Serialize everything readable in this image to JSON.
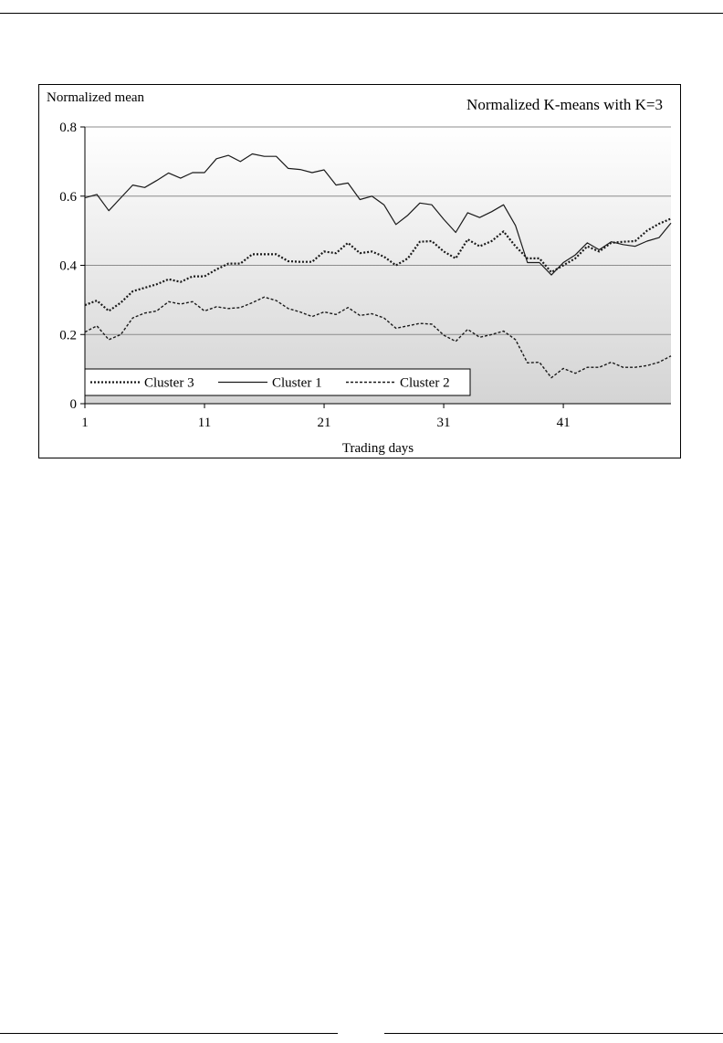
{
  "chart_data": {
    "type": "line",
    "title": "Normalized K-means with K=3",
    "ylabel": "Normalized mean",
    "xlabel": "Trading days",
    "xlim": [
      1,
      50
    ],
    "ylim": [
      0,
      0.8
    ],
    "yticks": [
      0,
      0.2,
      0.4,
      0.6,
      0.8
    ],
    "ytick_labels": [
      "0",
      "0.2",
      "0.4",
      "0.6",
      "0.8"
    ],
    "xticks": [
      1,
      11,
      21,
      31,
      41
    ],
    "xtick_labels": [
      "1",
      "11",
      "21",
      "31",
      "41"
    ],
    "grid": "horizontal",
    "legend": "bottom-left",
    "legend_order": [
      "Cluster 3",
      "Cluster 1",
      "Cluster 2"
    ],
    "x": [
      1,
      2,
      3,
      4,
      5,
      6,
      7,
      8,
      9,
      10,
      11,
      12,
      13,
      14,
      15,
      16,
      17,
      18,
      19,
      20,
      21,
      22,
      23,
      24,
      25,
      26,
      27,
      28,
      29,
      30,
      31,
      32,
      33,
      34,
      35,
      36,
      37,
      38,
      39,
      40,
      41,
      42,
      43,
      44,
      45,
      46,
      47,
      48,
      49,
      50
    ],
    "series": [
      {
        "name": "Cluster 1",
        "style": "solid",
        "values": [
          0.595,
          0.605,
          0.558,
          0.595,
          0.632,
          0.625,
          0.645,
          0.667,
          0.652,
          0.668,
          0.668,
          0.708,
          0.718,
          0.7,
          0.722,
          0.715,
          0.715,
          0.68,
          0.677,
          0.668,
          0.676,
          0.632,
          0.638,
          0.59,
          0.6,
          0.575,
          0.518,
          0.545,
          0.58,
          0.575,
          0.533,
          0.495,
          0.552,
          0.538,
          0.555,
          0.575,
          0.515,
          0.408,
          0.408,
          0.372,
          0.408,
          0.43,
          0.465,
          0.445,
          0.468,
          0.46,
          0.455,
          0.47,
          0.48,
          0.522
        ]
      },
      {
        "name": "Cluster 2",
        "style": "dashed",
        "values": [
          0.207,
          0.225,
          0.185,
          0.2,
          0.248,
          0.262,
          0.268,
          0.295,
          0.288,
          0.295,
          0.268,
          0.28,
          0.275,
          0.278,
          0.292,
          0.308,
          0.298,
          0.275,
          0.265,
          0.252,
          0.265,
          0.258,
          0.278,
          0.255,
          0.26,
          0.248,
          0.218,
          0.225,
          0.232,
          0.23,
          0.198,
          0.18,
          0.215,
          0.192,
          0.2,
          0.21,
          0.185,
          0.118,
          0.12,
          0.075,
          0.102,
          0.088,
          0.105,
          0.105,
          0.12,
          0.105,
          0.105,
          0.11,
          0.12,
          0.138
        ]
      },
      {
        "name": "Cluster 3",
        "style": "dotted",
        "values": [
          0.285,
          0.298,
          0.268,
          0.292,
          0.325,
          0.335,
          0.345,
          0.36,
          0.352,
          0.368,
          0.368,
          0.388,
          0.405,
          0.405,
          0.432,
          0.432,
          0.432,
          0.412,
          0.41,
          0.41,
          0.44,
          0.435,
          0.465,
          0.435,
          0.44,
          0.425,
          0.4,
          0.42,
          0.468,
          0.47,
          0.44,
          0.42,
          0.475,
          0.455,
          0.47,
          0.498,
          0.455,
          0.42,
          0.42,
          0.38,
          0.4,
          0.42,
          0.455,
          0.44,
          0.465,
          0.468,
          0.47,
          0.5,
          0.52,
          0.535
        ]
      }
    ]
  }
}
